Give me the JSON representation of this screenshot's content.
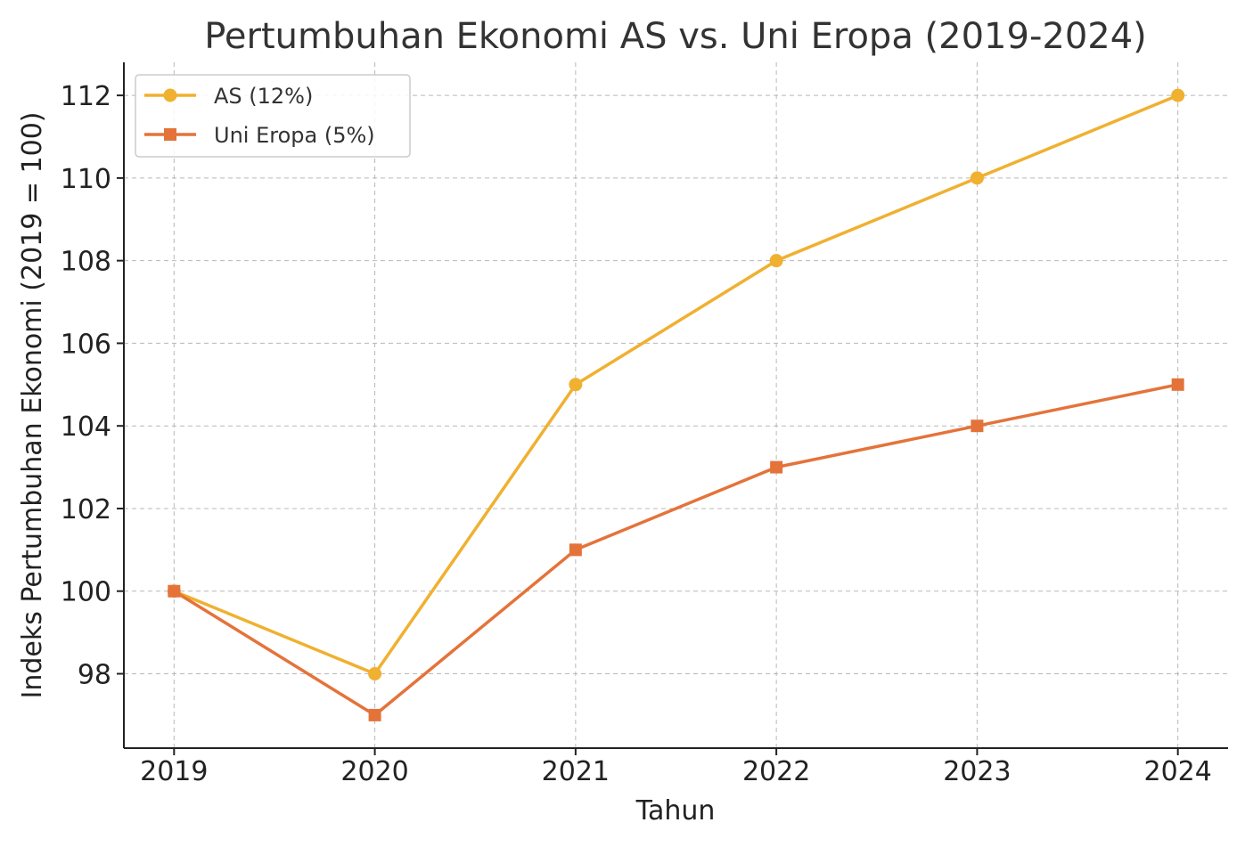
{
  "chart_data": {
    "type": "line",
    "title": "Pertumbuhan Ekonomi AS vs. Uni Eropa (2019-2024)",
    "xlabel": "Tahun",
    "ylabel": "Indeks Pertumbuhan Ekonomi (2019 = 100)",
    "x": [
      2019,
      2020,
      2021,
      2022,
      2023,
      2024
    ],
    "x_tick_labels": [
      "2019",
      "2020",
      "2021",
      "2022",
      "2023",
      "2024"
    ],
    "y_ticks": [
      98,
      100,
      102,
      104,
      106,
      108,
      110,
      112
    ],
    "y_tick_labels": [
      "98",
      "100",
      "102",
      "104",
      "106",
      "108",
      "110",
      "112"
    ],
    "ylim": [
      96.2,
      112.8
    ],
    "xlim": [
      2018.75,
      2024.25
    ],
    "grid": true,
    "legend_position": "top-left",
    "series": [
      {
        "name": "AS (12%)",
        "values": [
          100,
          98,
          105,
          108,
          110,
          112
        ],
        "color": "#f0b030",
        "marker": "circle"
      },
      {
        "name": "Uni Eropa (5%)",
        "values": [
          100,
          97,
          101,
          103,
          104,
          105
        ],
        "color": "#e4733a",
        "marker": "square"
      }
    ]
  }
}
